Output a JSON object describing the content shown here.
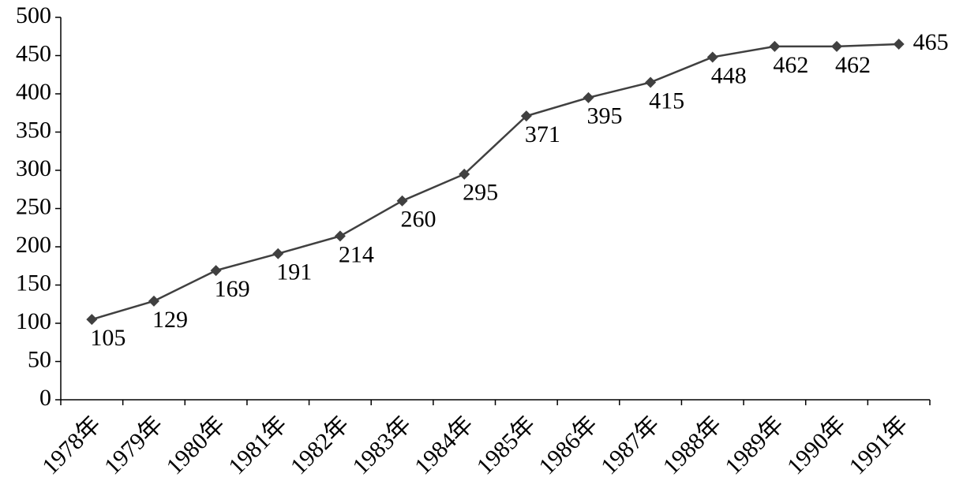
{
  "chart_data": {
    "type": "line",
    "categories": [
      "1978年",
      "1979年",
      "1980年",
      "1981年",
      "1982年",
      "1983年",
      "1984年",
      "1985年",
      "1986年",
      "1987年",
      "1988年",
      "1989年",
      "1990年",
      "1991年"
    ],
    "series": [
      {
        "color": "#404040",
        "values": [
          105,
          129,
          169,
          191,
          214,
          260,
          295,
          371,
          395,
          415,
          448,
          462,
          462,
          465
        ]
      }
    ],
    "ylim": [
      0,
      500
    ],
    "yticks": [
      0,
      50,
      100,
      150,
      200,
      250,
      300,
      350,
      400,
      450,
      500
    ]
  }
}
